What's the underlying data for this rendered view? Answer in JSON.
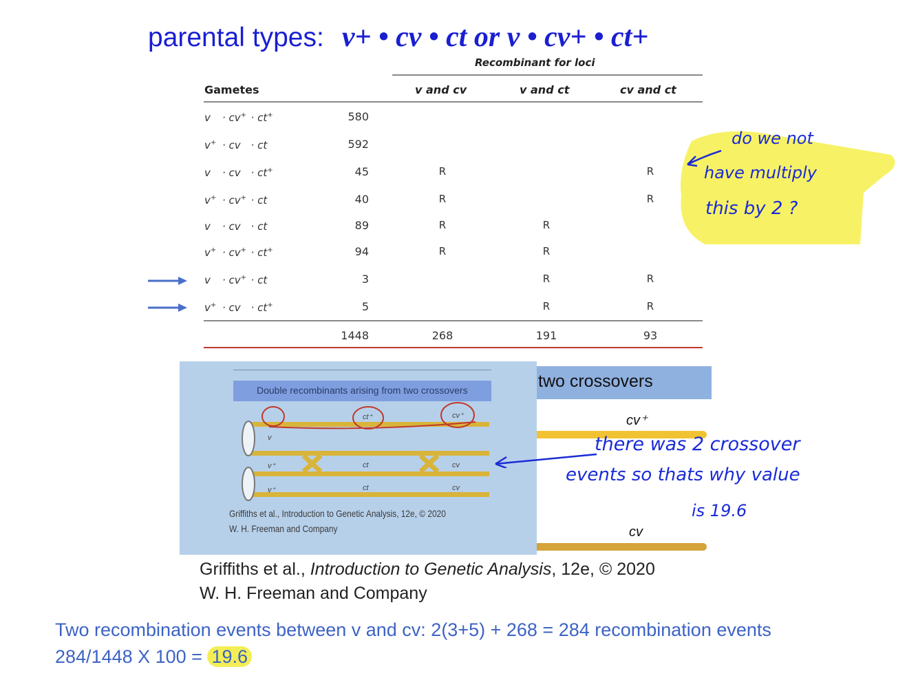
{
  "title": {
    "prefix": "parental types:",
    "genotypes": "v+ • cv • ct or v • cv+ • ct+"
  },
  "table": {
    "super_header": "Recombinant for loci",
    "headers": {
      "gametes": "Gametes",
      "col1": "v and cv",
      "col2": "v and ct",
      "col3": "cv and ct"
    },
    "rows": [
      {
        "v": "v",
        "cv": "cv",
        "ct": "ct",
        "v_sup": "",
        "cv_sup": "+",
        "ct_sup": "+",
        "count": "580",
        "r1": "",
        "r2": "",
        "r3": ""
      },
      {
        "v": "v",
        "cv": "cv",
        "ct": "ct",
        "v_sup": "+",
        "cv_sup": "",
        "ct_sup": "",
        "count": "592",
        "r1": "",
        "r2": "",
        "r3": ""
      },
      {
        "v": "v",
        "cv": "cv",
        "ct": "ct",
        "v_sup": "",
        "cv_sup": "",
        "ct_sup": "+",
        "count": "45",
        "r1": "R",
        "r2": "",
        "r3": "R"
      },
      {
        "v": "v",
        "cv": "cv",
        "ct": "ct",
        "v_sup": "+",
        "cv_sup": "+",
        "ct_sup": "",
        "count": "40",
        "r1": "R",
        "r2": "",
        "r3": "R"
      },
      {
        "v": "v",
        "cv": "cv",
        "ct": "ct",
        "v_sup": "",
        "cv_sup": "",
        "ct_sup": "",
        "count": "89",
        "r1": "R",
        "r2": "R",
        "r3": ""
      },
      {
        "v": "v",
        "cv": "cv",
        "ct": "ct",
        "v_sup": "+",
        "cv_sup": "+",
        "ct_sup": "+",
        "count": "94",
        "r1": "R",
        "r2": "R",
        "r3": ""
      },
      {
        "v": "v",
        "cv": "cv",
        "ct": "ct",
        "v_sup": "",
        "cv_sup": "+",
        "ct_sup": "",
        "count": "3",
        "r1": "",
        "r2": "R",
        "r3": "R"
      },
      {
        "v": "v",
        "cv": "cv",
        "ct": "ct",
        "v_sup": "+",
        "cv_sup": "",
        "ct_sup": "+",
        "count": "5",
        "r1": "",
        "r2": "R",
        "r3": "R"
      }
    ],
    "totals": {
      "count": "1448",
      "c1": "268",
      "c2": "191",
      "c3": "93"
    }
  },
  "photo": {
    "banner": "Double recombinants arising from two crossovers",
    "labels": {
      "v": "v",
      "v_plus": "v⁺",
      "ct": "ct",
      "ct_plus": "ct⁺",
      "cv": "cv",
      "cv_plus": "cv⁺"
    },
    "citation_line1": "Griffiths et al., Introduction to Genetic Analysis, 12e, © 2020",
    "citation_line2": "W. H. Freeman and Company"
  },
  "diagram": {
    "banner": "two crossovers",
    "cv_plus": "cv⁺",
    "cv": "cv"
  },
  "citation": {
    "author": "Griffiths et al., ",
    "book": "Introduction to Genetic Analysis",
    "edition": ", 12e, © 2020",
    "publisher": "W. H. Freeman and Company"
  },
  "summary": {
    "line1": "Two recombination events between v and cv: 2(3+5) + 268 = 284 recombination events",
    "line2_prefix": "284/1448 X 100 = ",
    "line2_value": "19.6"
  },
  "notes": {
    "top_right": [
      "do we not",
      "have multiply",
      "this by 2 ?"
    ],
    "middle": [
      "there was 2 crossover",
      "events so thats why value",
      "is 19.6"
    ]
  },
  "colors": {
    "title_blue": "#1a1fd1",
    "summary_blue": "#3d63c4",
    "highlight": "#f3ee55",
    "chromosome_gold": "#e8bf3a"
  }
}
